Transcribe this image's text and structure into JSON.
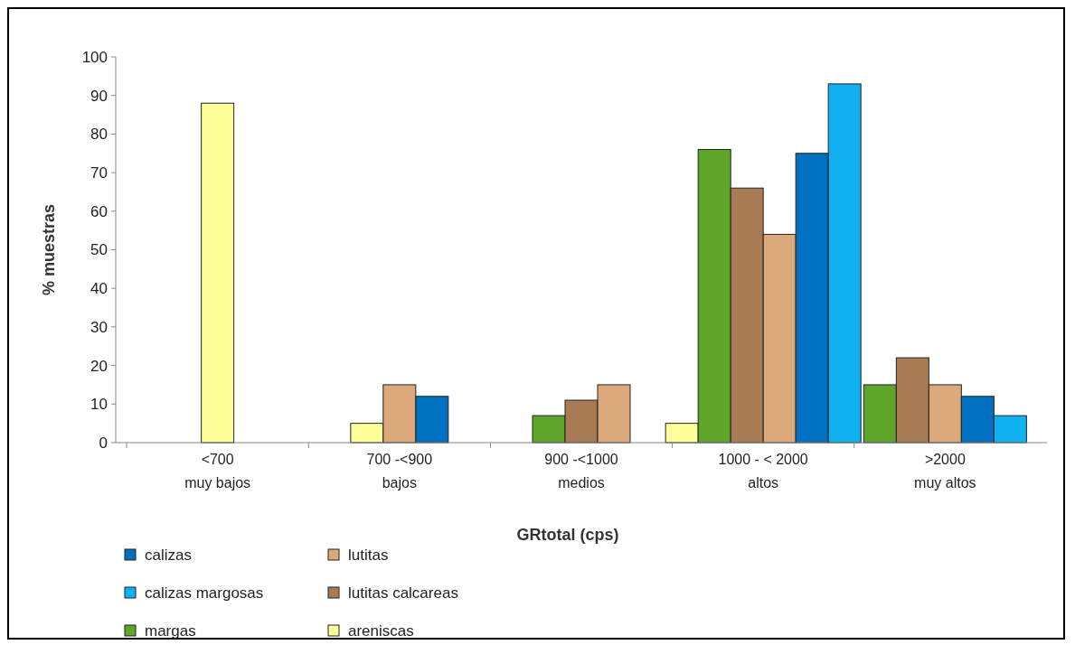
{
  "chart_data": {
    "type": "bar",
    "xlabel": "GRtotal (cps)",
    "ylabel": "% muestras",
    "categories": [
      "<700\nmuy bajos",
      "700 -<900\nbajos",
      "900 -<1000\nmedios",
      "1000 - < 2000\naltos",
      ">2000\nmuy altos"
    ],
    "ylim": [
      0,
      100
    ],
    "yticks": [
      0,
      10,
      20,
      30,
      40,
      50,
      60,
      70,
      80,
      90,
      100
    ],
    "grid": false,
    "legend": "bottom",
    "series": [
      {
        "name": "areniscas",
        "color": "#ffff99",
        "values": [
          88,
          5,
          null,
          5,
          null
        ]
      },
      {
        "name": "margas",
        "color": "#5ea52a",
        "values": [
          null,
          null,
          7,
          76,
          15
        ]
      },
      {
        "name": "lutitas calcareas",
        "color": "#a97b55",
        "values": [
          null,
          null,
          11,
          66,
          22
        ]
      },
      {
        "name": "lutitas",
        "color": "#dca97c",
        "values": [
          null,
          15,
          15,
          54,
          15
        ]
      },
      {
        "name": "calizas",
        "color": "#0070c0",
        "values": [
          null,
          12,
          null,
          75,
          12
        ]
      },
      {
        "name": "calizas margosas",
        "color": "#11b0f0",
        "values": [
          null,
          null,
          null,
          93,
          7
        ]
      }
    ]
  }
}
